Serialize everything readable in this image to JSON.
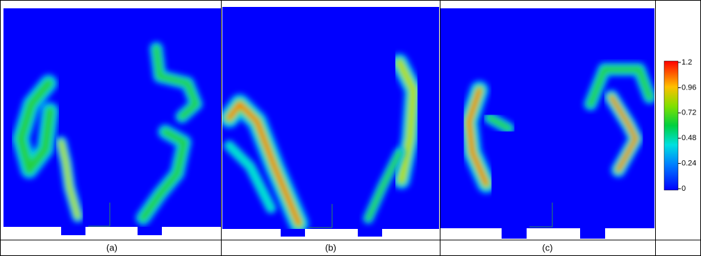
{
  "figure": {
    "panels": [
      {
        "label": "(a)"
      },
      {
        "label": "(b)"
      },
      {
        "label": "(c)"
      }
    ],
    "colorbar": {
      "ticks": [
        0,
        0.24,
        0.48,
        0.72,
        0.96,
        1.2
      ],
      "range": [
        0,
        1.2
      ]
    }
  }
}
